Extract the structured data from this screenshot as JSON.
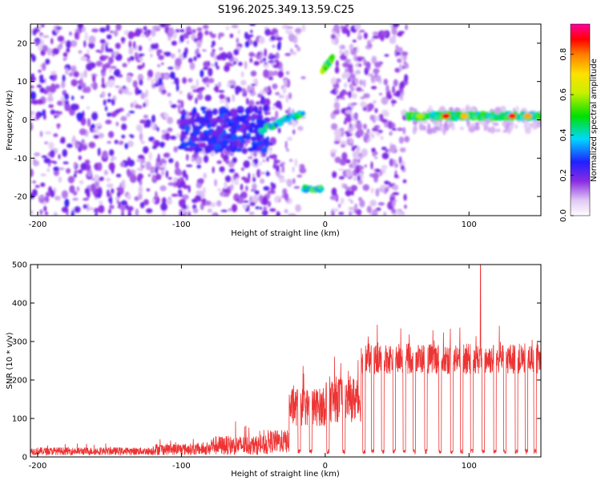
{
  "title": "S196.2025.349.13.59.C25",
  "chart_data": [
    {
      "type": "heatmap",
      "xlabel": "Height of straight line (km)",
      "ylabel": "Frequency (Hz)",
      "xlim": [
        -205,
        150
      ],
      "ylim": [
        -25,
        25
      ],
      "xticks": [
        -200,
        -100,
        0,
        100
      ],
      "yticks": [
        -20,
        -10,
        0,
        10,
        20
      ],
      "colorbar": {
        "label": "Normalized spectral amplitude",
        "range": [
          0.0,
          0.95
        ],
        "ticks": [
          "0.0",
          "0.2",
          "0.4",
          "0.6",
          "0.8"
        ]
      },
      "features": [
        {
          "name": "noise-field-left",
          "x": [
            -205,
            -30
          ],
          "amplitude": "low-to-moderate"
        },
        {
          "name": "dense-band",
          "x": [
            -100,
            -40
          ],
          "freq": [
            -8,
            3
          ]
        },
        {
          "name": "rising-tone",
          "x": [
            -45,
            -15
          ],
          "freq_start": -3,
          "freq_end": 2
        },
        {
          "name": "negative-tone",
          "x": [
            -15,
            -2
          ],
          "freq": -18
        },
        {
          "name": "positive-tone",
          "x": [
            -2,
            5
          ],
          "freq": 14
        },
        {
          "name": "noise-field-right",
          "x": [
            5,
            57
          ],
          "amplitude": "low"
        },
        {
          "name": "constant-tone",
          "x": [
            57,
            150
          ],
          "freq": 1,
          "amplitude": "high"
        }
      ]
    },
    {
      "type": "line",
      "xlabel": "Height of straight line (km)",
      "ylabel": "SNR (10 * v/v)",
      "xlim": [
        -205,
        150
      ],
      "ylim": [
        0,
        500
      ],
      "xticks": [
        -200,
        -100,
        0,
        100
      ],
      "yticks": [
        0,
        100,
        200,
        300,
        400,
        500
      ],
      "color": "#ee3333",
      "segments": [
        {
          "x": [
            -205,
            -120
          ],
          "baseline": 15,
          "noise": 10
        },
        {
          "x": [
            -120,
            -80
          ],
          "baseline": 20,
          "noise": 15
        },
        {
          "x": [
            -80,
            -40
          ],
          "baseline": 30,
          "noise": 25
        },
        {
          "x": [
            -40,
            -25
          ],
          "baseline": 40,
          "noise": 30
        },
        {
          "x": [
            -25,
            0
          ],
          "baseline": 130,
          "noise": 50
        },
        {
          "x": [
            0,
            25
          ],
          "baseline": 150,
          "noise": 60
        },
        {
          "x": [
            25,
            150
          ],
          "baseline": 255,
          "noise": 40
        }
      ],
      "peak": {
        "x": 108,
        "y": 500
      },
      "dropouts_x": [
        -18,
        -10,
        2,
        13,
        27,
        33,
        40,
        48,
        55,
        62,
        70,
        80,
        88,
        95,
        102,
        110,
        118,
        125,
        133,
        140,
        146
      ]
    }
  ]
}
